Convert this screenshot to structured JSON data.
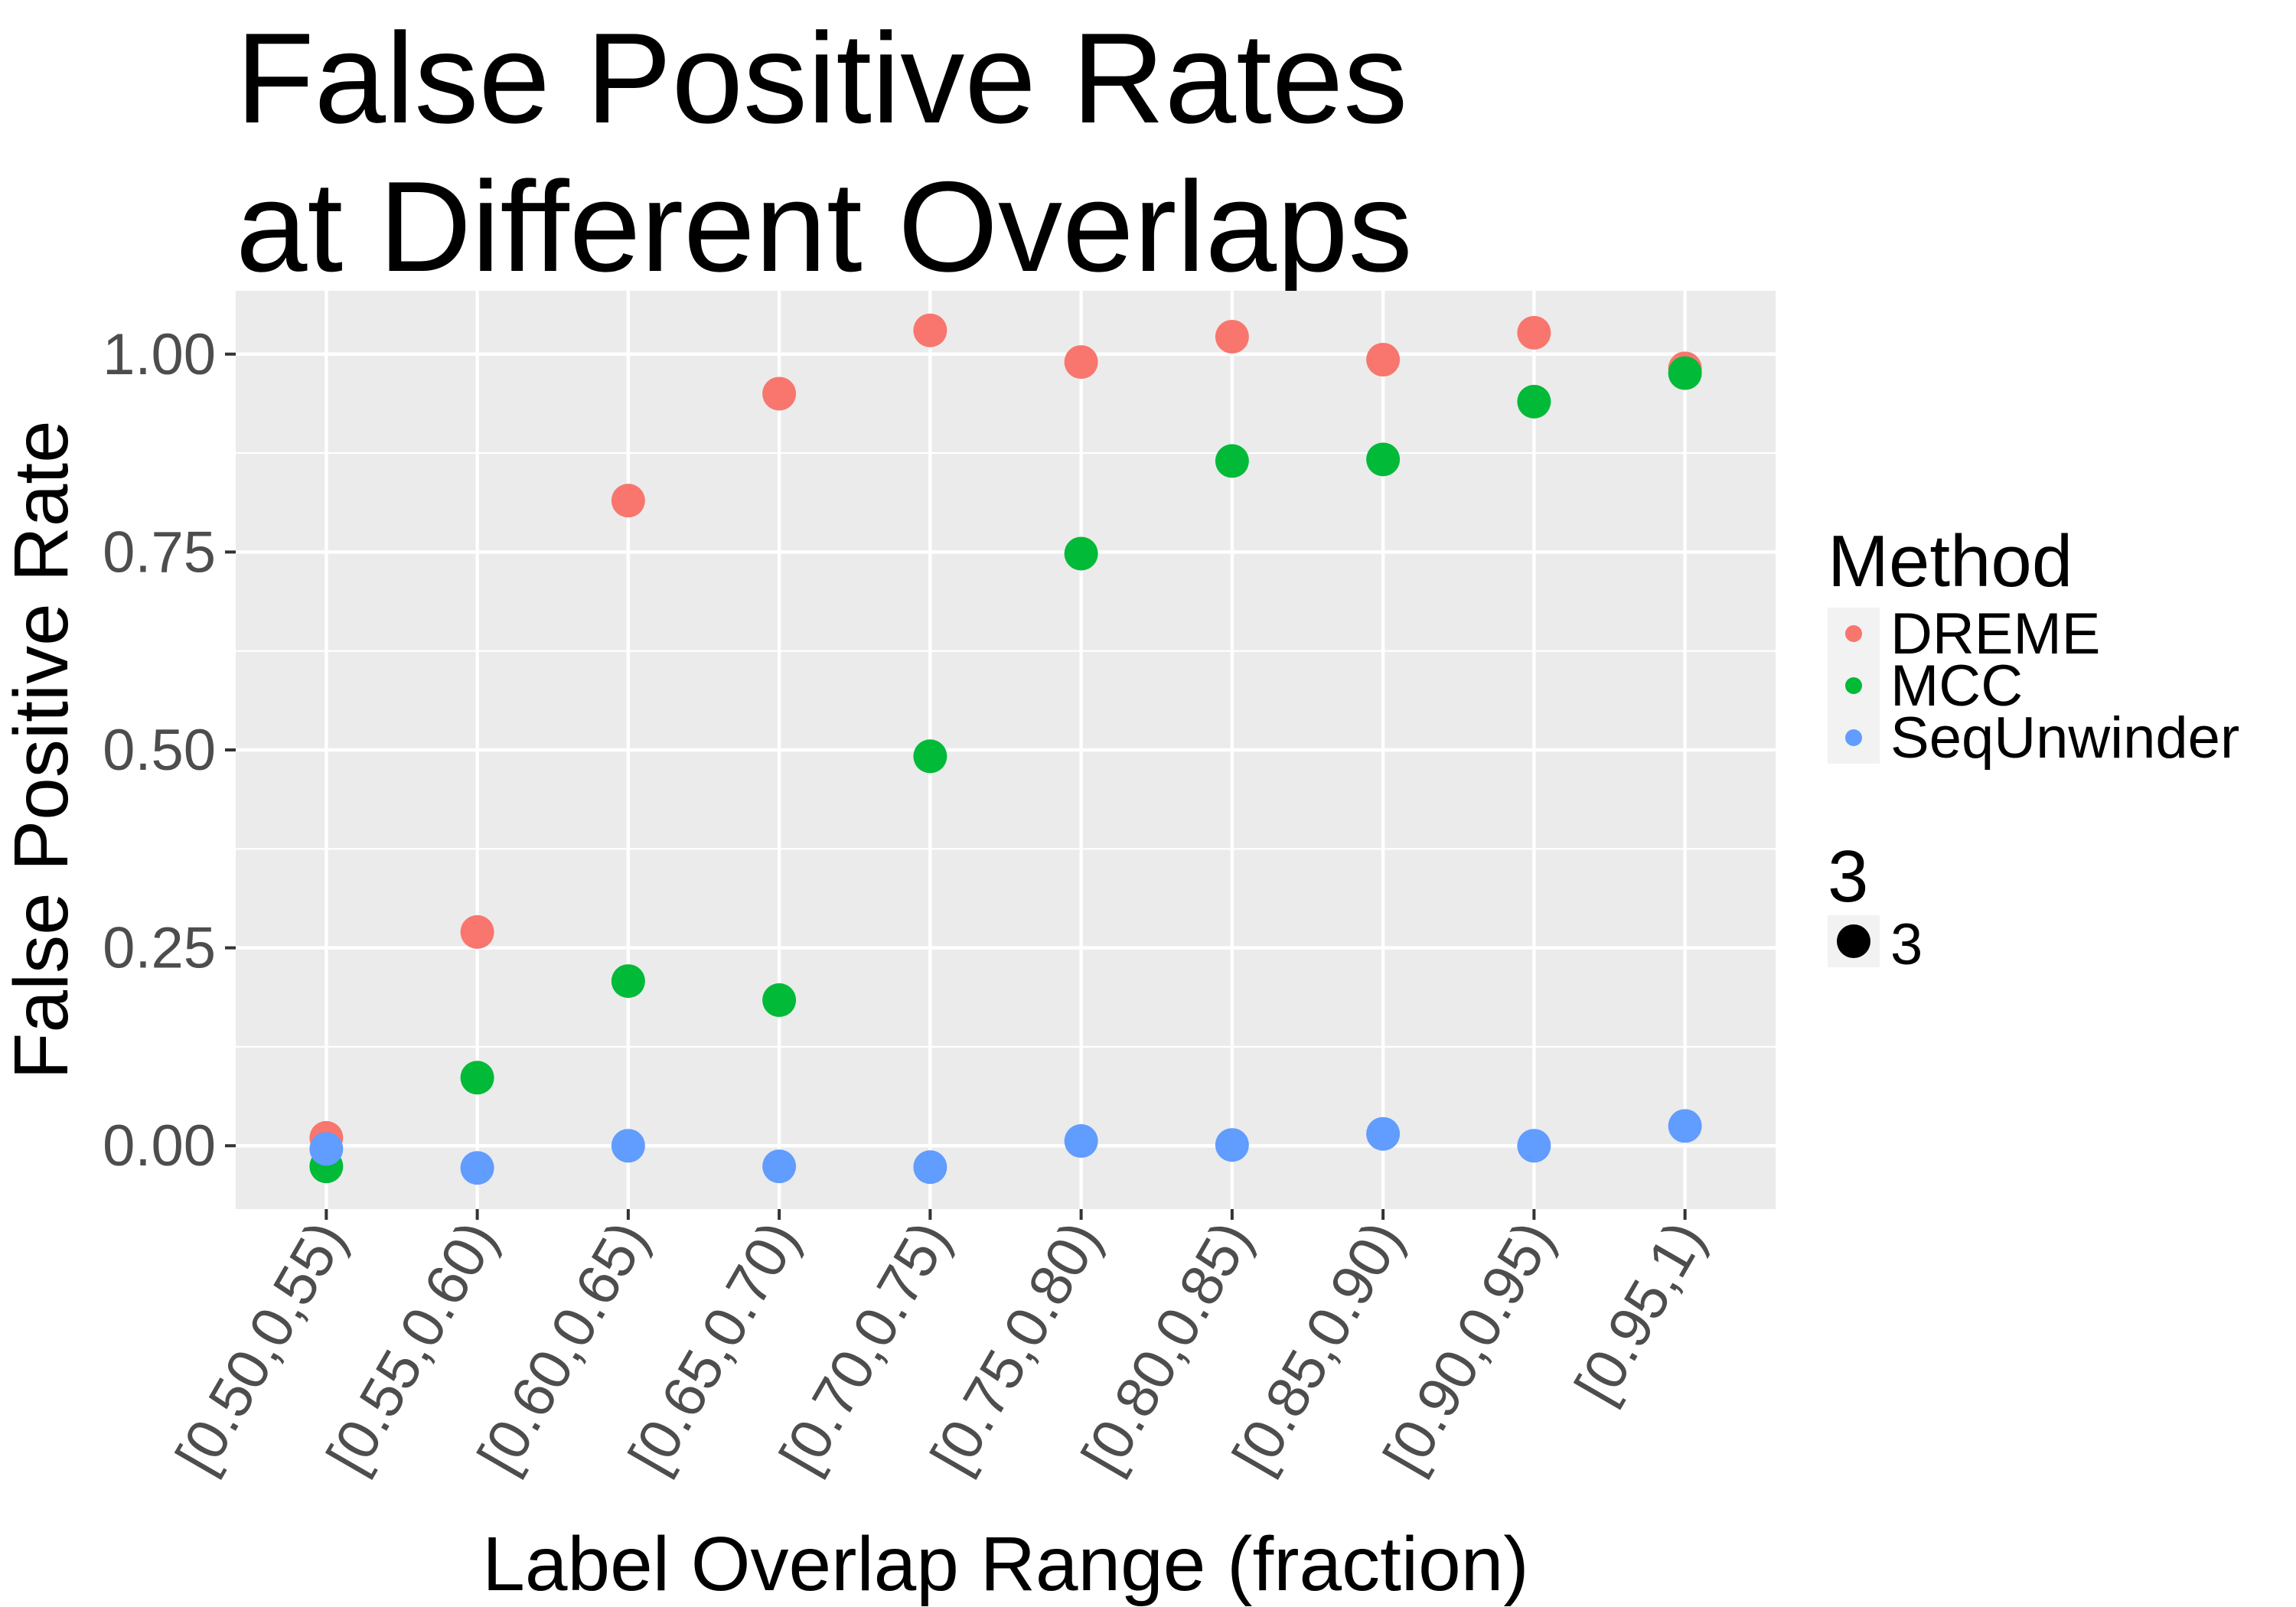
{
  "chart_data": {
    "type": "scatter",
    "title": [
      "False Positive Rates",
      "at Different Overlaps"
    ],
    "xlabel": "Label Overlap Range (fraction)",
    "ylabel": "False Positive Rate",
    "categories": [
      "[0.50,0,55)",
      "[0.55,0.60)",
      "[0.60,0.65)",
      "[0.65,0.70)",
      "[0.70,0.75)",
      "[0.75,0.80)",
      "[0.80,0.85)",
      "[0.85,0.90)",
      "[0.90,0.95)",
      "[0.95,1)"
    ],
    "ylim": [
      -0.08,
      1.08
    ],
    "yticks": [
      {
        "value": 0.0,
        "label": "0.00"
      },
      {
        "value": 0.25,
        "label": "0.25"
      },
      {
        "value": 0.5,
        "label": "0.50"
      },
      {
        "value": 0.75,
        "label": "0.75"
      },
      {
        "value": 1.0,
        "label": "1.00"
      }
    ],
    "grid": true,
    "panel_background": "#ebebeb",
    "grid_color": "#ffffff",
    "legend_position": "right",
    "series": [
      {
        "name": "DREME",
        "color": "#f8766d",
        "values": [
          0.01,
          0.27,
          0.815,
          0.95,
          1.03,
          0.99,
          1.022,
          0.993,
          1.027,
          0.982
        ]
      },
      {
        "name": "MCC",
        "color": "#00ba38",
        "values": [
          -0.026,
          0.086,
          0.208,
          0.184,
          0.492,
          0.748,
          0.865,
          0.867,
          0.94,
          0.976
        ]
      },
      {
        "name": "SeqUnwinder",
        "color": "#619cff",
        "values": [
          -0.004,
          -0.028,
          0.0,
          -0.026,
          -0.027,
          0.006,
          0.001,
          0.015,
          0.0,
          0.025
        ]
      }
    ],
    "legend": {
      "color_title": "Method",
      "size_title": "3",
      "size_entries": [
        "3"
      ],
      "size_color": "#000000"
    }
  }
}
